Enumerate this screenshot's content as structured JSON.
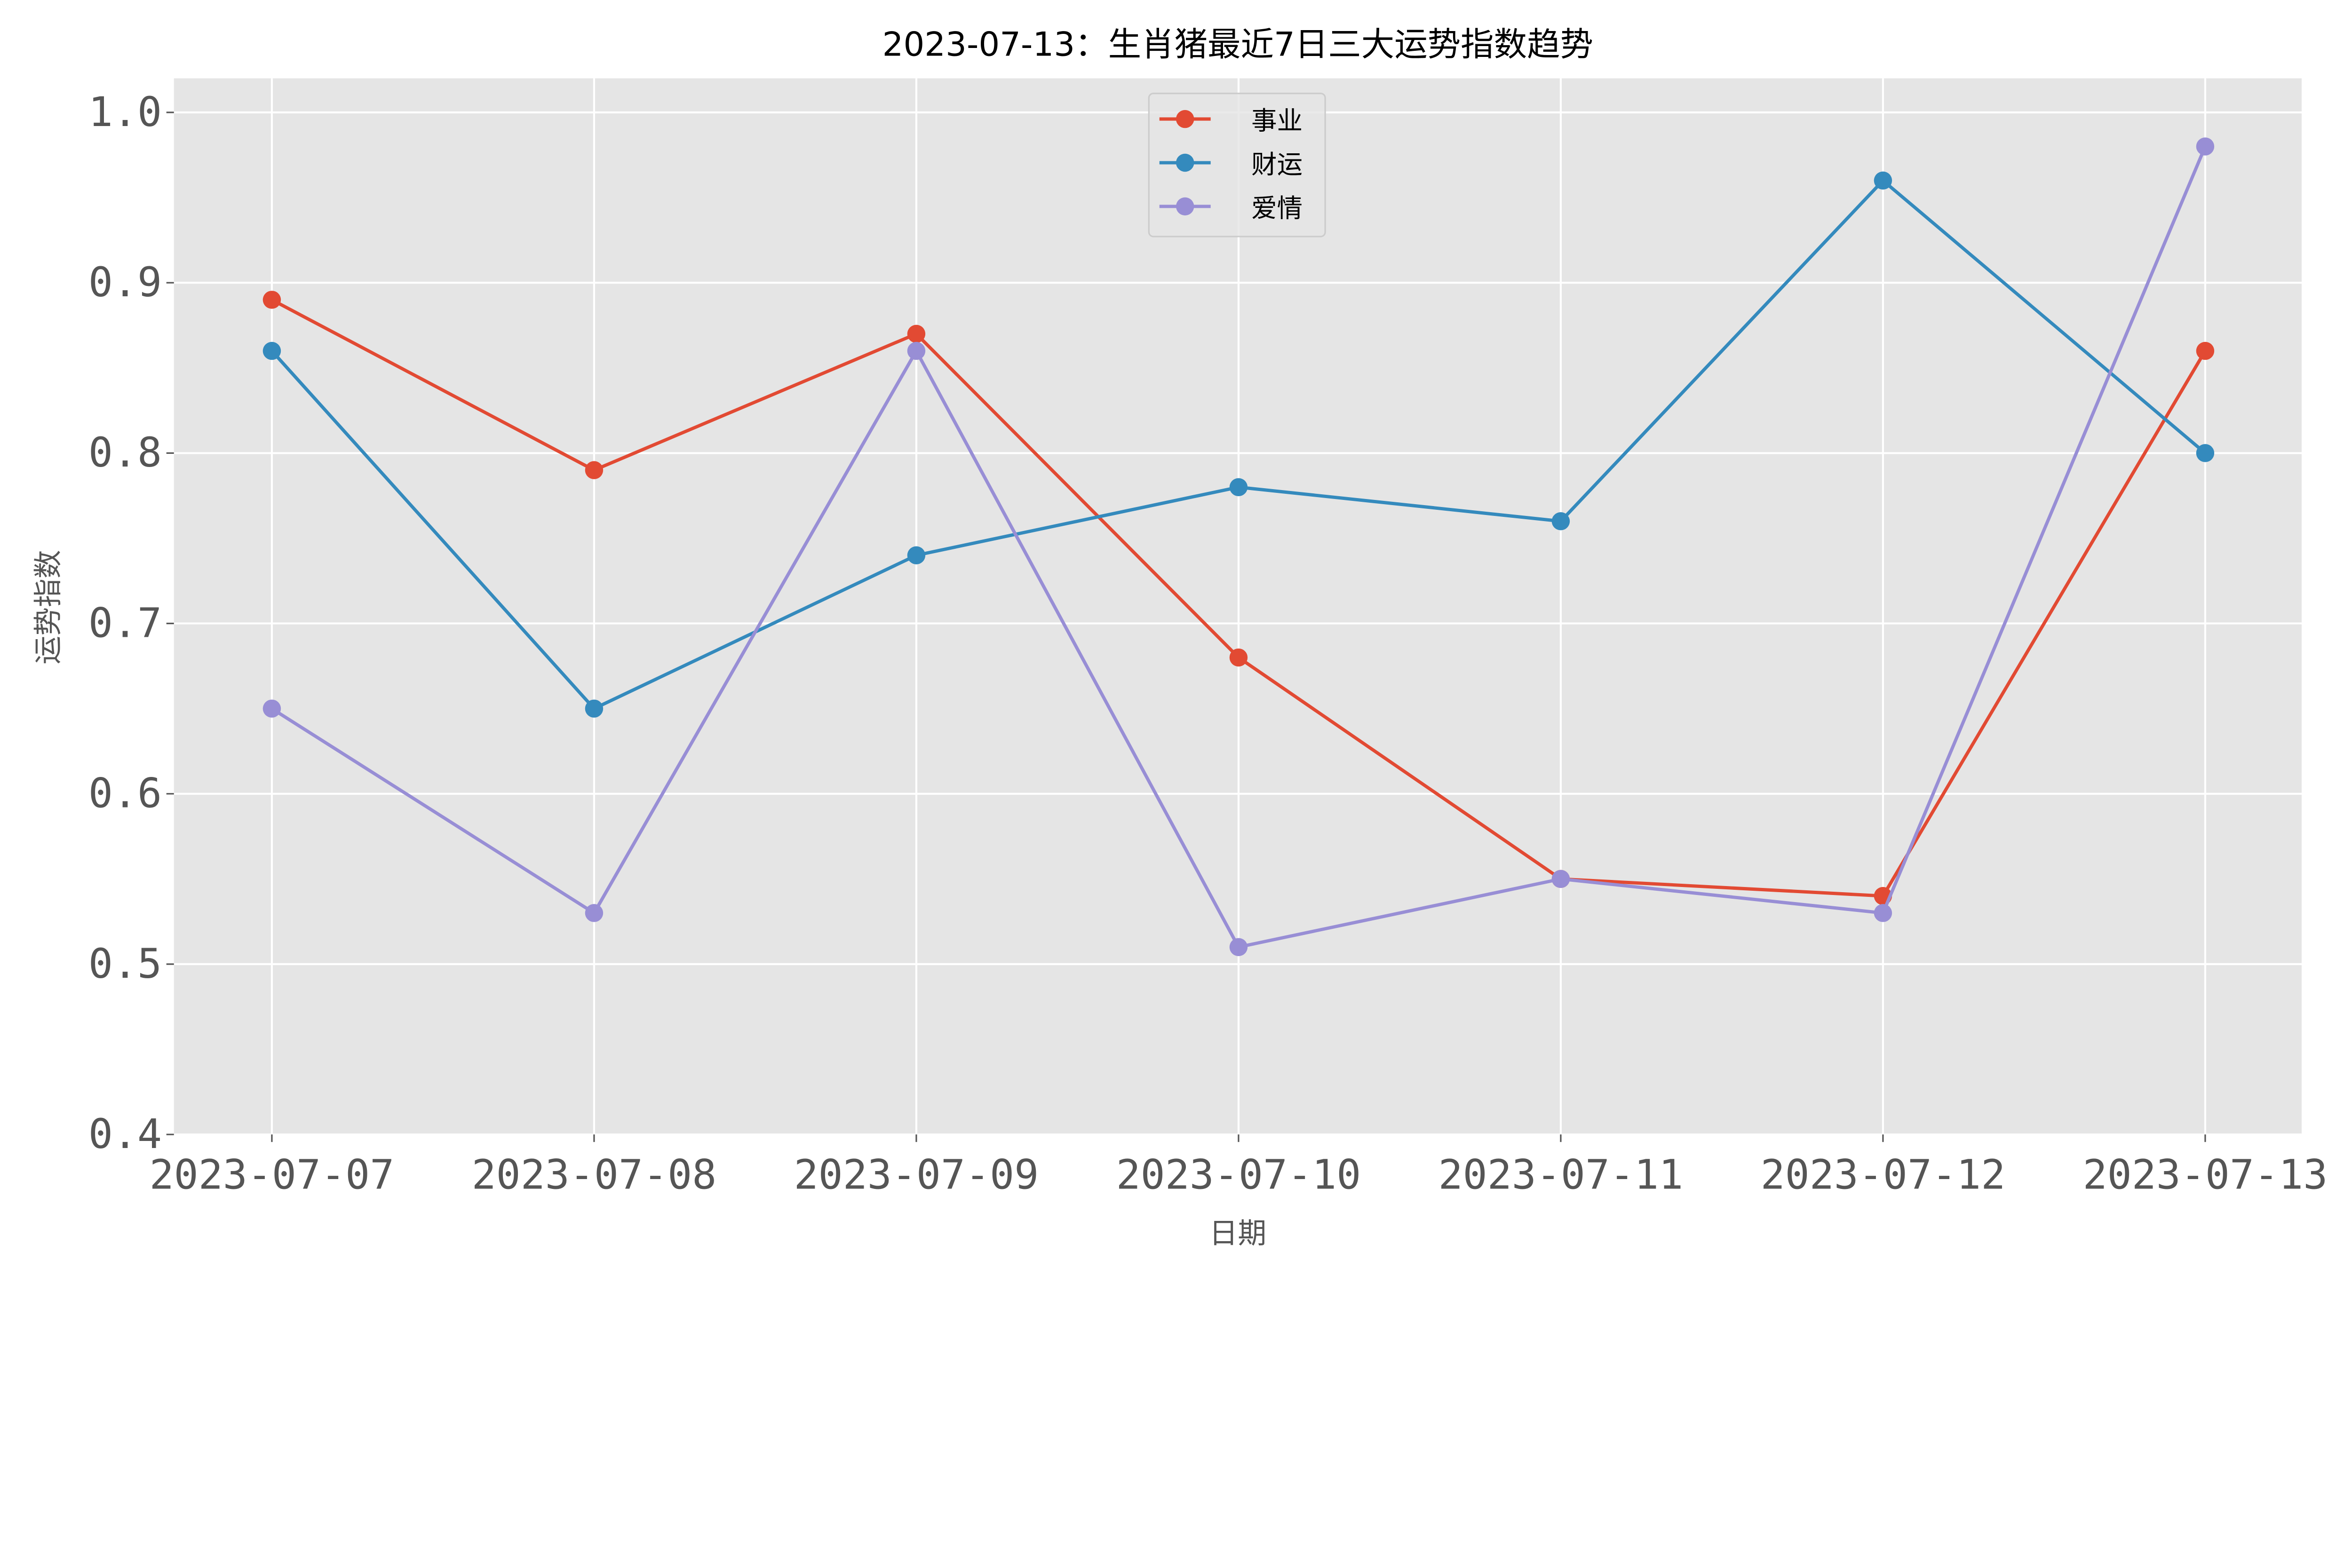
{
  "chart_data": {
    "type": "line",
    "title": "2023-07-13：生肖猪最近7日三大运势指数趋势",
    "xlabel": "日期",
    "ylabel": "运势指数",
    "categories": [
      "2023-07-07",
      "2023-07-08",
      "2023-07-09",
      "2023-07-10",
      "2023-07-11",
      "2023-07-12",
      "2023-07-13"
    ],
    "ylim": [
      0.4,
      1.02
    ],
    "yticks": [
      "0.4",
      "0.5",
      "0.6",
      "0.7",
      "0.8",
      "0.9",
      "1.0"
    ],
    "grid": true,
    "legend_position": "top-center",
    "markers": "circle",
    "series": [
      {
        "name": "事业",
        "color": "#E24A33",
        "values": [
          0.89,
          0.79,
          0.87,
          0.68,
          0.55,
          0.54,
          0.86
        ]
      },
      {
        "name": "财运",
        "color": "#348ABD",
        "values": [
          0.86,
          0.65,
          0.74,
          0.78,
          0.76,
          0.96,
          0.8
        ]
      },
      {
        "name": "爱情",
        "color": "#988ED5",
        "values": [
          0.65,
          0.53,
          0.86,
          0.51,
          0.55,
          0.53,
          0.98
        ]
      }
    ],
    "background_color": "#E5E5E5"
  }
}
